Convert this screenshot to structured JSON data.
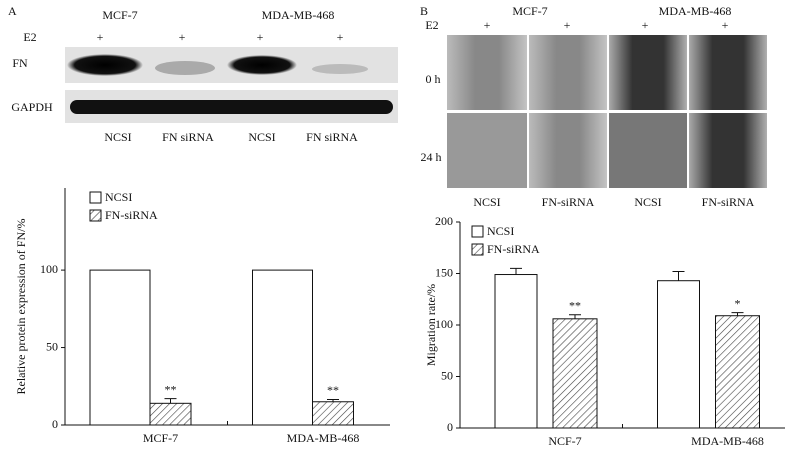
{
  "panel_a": {
    "label": "A",
    "blot": {
      "cell_lines": [
        "MCF-7",
        "MDA-MB-468"
      ],
      "treatment_label": "E2",
      "treatment_marks": [
        "+",
        "+",
        "+",
        "+"
      ],
      "rows": [
        "FN",
        "GAPDH"
      ],
      "lanes": [
        "NCSI",
        "FN siRNA",
        "NCSI",
        "FN siRNA"
      ]
    }
  },
  "panel_b": {
    "label": "B",
    "migration": {
      "cell_lines": [
        "MCF-7",
        "MDA-MB-468"
      ],
      "treatment_label": "E2",
      "treatment_marks": [
        "+",
        "+",
        "+",
        "+"
      ],
      "rows": [
        "0 h",
        "24 h"
      ],
      "lanes": [
        "NCSI",
        "FN-siRNA",
        "NCSI",
        "FN-siRNA"
      ]
    }
  },
  "chart_data": [
    {
      "type": "bar",
      "y_label": "Relative protein expression of  FN/%",
      "categories": [
        "MCF-7",
        "MDA-MB-468"
      ],
      "series": [
        {
          "name": "NCSI",
          "color": "#ffffff",
          "values": [
            100,
            100
          ]
        },
        {
          "name": "FN-siRNA",
          "color": "#ffffff",
          "hatch": true,
          "values": [
            14,
            15
          ],
          "errors": [
            3,
            1.5
          ],
          "annotations": [
            "**",
            "**"
          ]
        }
      ],
      "ylim": [
        0,
        153
      ],
      "yticks": [
        0,
        50,
        100
      ],
      "legend": "upper left"
    },
    {
      "type": "bar",
      "y_label": "Migration rate/%",
      "categories": [
        "NCF-7",
        "MDA-MB-468"
      ],
      "series": [
        {
          "name": "NCSI",
          "color": "#ffffff",
          "values": [
            149,
            143
          ],
          "errors": [
            6,
            9
          ]
        },
        {
          "name": "FN-siRNA",
          "color": "#ffffff",
          "hatch": true,
          "values": [
            106,
            109
          ],
          "errors": [
            4,
            3
          ],
          "annotations": [
            "**",
            "*"
          ]
        }
      ],
      "ylim": [
        0,
        200
      ],
      "yticks": [
        0,
        50,
        100,
        150,
        200
      ],
      "legend": "upper left"
    }
  ]
}
